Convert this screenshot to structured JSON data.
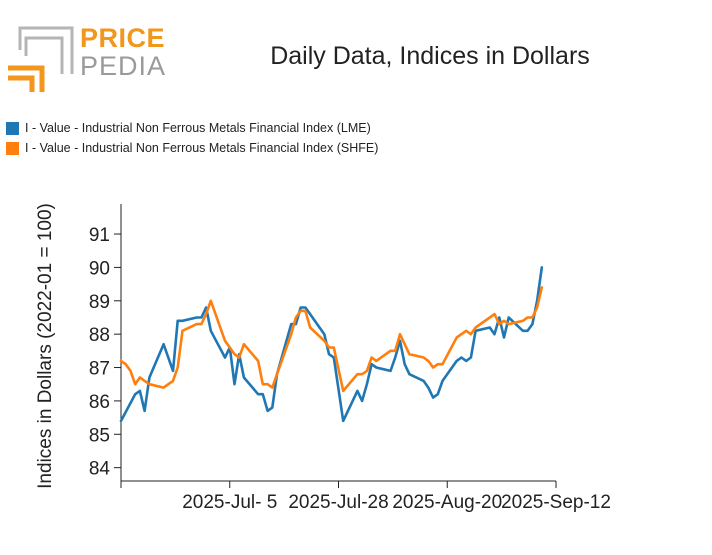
{
  "logo": {
    "word1": "PRICE",
    "word2": "PEDIA"
  },
  "colors": {
    "lme": "#1f77b4",
    "shfe": "#ff7f0e",
    "logo_orange": "#f2961c",
    "logo_gray": "#9a9a9a"
  },
  "chart_data": {
    "type": "line",
    "title": "Daily Data, Indices in Dollars",
    "xlabel": "",
    "ylabel": "Indices in Dollars (2022-01 = 100)",
    "ylim": [
      83.6,
      91.9
    ],
    "yticks": [
      84,
      85,
      86,
      87,
      88,
      89,
      90,
      91
    ],
    "xticks": [
      {
        "label": "2025-Jul- 5",
        "t": 14
      },
      {
        "label": "2025-Jul-28",
        "t": 37
      },
      {
        "label": "2025-Aug-20",
        "t": 60
      },
      {
        "label": "2025-Sep-12",
        "t": 83
      }
    ],
    "xlim": [
      -9,
      83
    ],
    "grid": false,
    "legend_position": "top-left",
    "series": [
      {
        "name": "I - Value - Industrial Non Ferrous Metals Financial Index (LME)",
        "color": "#1f77b4",
        "points": [
          [
            -9,
            85.4
          ],
          [
            -6,
            86.2
          ],
          [
            -5,
            86.3
          ],
          [
            -4,
            85.7
          ],
          [
            -3,
            86.7
          ],
          [
            0,
            87.7
          ],
          [
            2,
            86.9
          ],
          [
            3,
            88.4
          ],
          [
            4,
            88.4
          ],
          [
            7,
            88.5
          ],
          [
            8,
            88.5
          ],
          [
            9,
            88.8
          ],
          [
            10,
            88.1
          ],
          [
            13,
            87.3
          ],
          [
            14,
            87.6
          ],
          [
            15,
            86.5
          ],
          [
            16,
            87.4
          ],
          [
            17,
            86.7
          ],
          [
            20,
            86.2
          ],
          [
            21,
            86.2
          ],
          [
            22,
            85.7
          ],
          [
            23,
            85.8
          ],
          [
            24,
            86.8
          ],
          [
            27,
            88.3
          ],
          [
            28,
            88.3
          ],
          [
            29,
            88.8
          ],
          [
            30,
            88.8
          ],
          [
            31,
            88.6
          ],
          [
            34,
            88.0
          ],
          [
            35,
            87.4
          ],
          [
            36,
            87.3
          ],
          [
            38,
            85.4
          ],
          [
            41,
            86.3
          ],
          [
            42,
            86.0
          ],
          [
            43,
            86.5
          ],
          [
            44,
            87.1
          ],
          [
            45,
            87.0
          ],
          [
            48,
            86.9
          ],
          [
            49,
            87.3
          ],
          [
            50,
            87.8
          ],
          [
            51,
            87.1
          ],
          [
            52,
            86.8
          ],
          [
            55,
            86.6
          ],
          [
            56,
            86.4
          ],
          [
            57,
            86.1
          ],
          [
            58,
            86.2
          ],
          [
            59,
            86.6
          ],
          [
            62,
            87.2
          ],
          [
            63,
            87.3
          ],
          [
            64,
            87.2
          ],
          [
            65,
            87.3
          ],
          [
            66,
            88.1
          ],
          [
            69,
            88.2
          ],
          [
            70,
            88.0
          ],
          [
            71,
            88.5
          ],
          [
            72,
            87.9
          ],
          [
            73,
            88.5
          ],
          [
            76,
            88.1
          ],
          [
            77,
            88.1
          ],
          [
            78,
            88.3
          ],
          [
            79,
            89.0
          ],
          [
            80,
            90.0
          ]
        ]
      },
      {
        "name": "I - Value - Industrial Non Ferrous Metals Financial Index (SHFE)",
        "color": "#ff7f0e",
        "points": [
          [
            -9,
            87.2
          ],
          [
            -8,
            87.1
          ],
          [
            -7,
            86.9
          ],
          [
            -6,
            86.5
          ],
          [
            -5,
            86.7
          ],
          [
            -4,
            86.6
          ],
          [
            -3,
            86.5
          ],
          [
            0,
            86.4
          ],
          [
            2,
            86.6
          ],
          [
            3,
            87.0
          ],
          [
            4,
            88.1
          ],
          [
            7,
            88.3
          ],
          [
            8,
            88.3
          ],
          [
            9,
            88.6
          ],
          [
            10,
            89.0
          ],
          [
            13,
            87.8
          ],
          [
            14,
            87.6
          ],
          [
            15,
            87.4
          ],
          [
            16,
            87.3
          ],
          [
            17,
            87.7
          ],
          [
            20,
            87.2
          ],
          [
            21,
            86.5
          ],
          [
            22,
            86.5
          ],
          [
            23,
            86.4
          ],
          [
            24,
            86.8
          ],
          [
            27,
            88.0
          ],
          [
            28,
            88.5
          ],
          [
            29,
            88.7
          ],
          [
            30,
            88.7
          ],
          [
            31,
            88.2
          ],
          [
            34,
            87.8
          ],
          [
            35,
            87.6
          ],
          [
            36,
            87.6
          ],
          [
            38,
            86.3
          ],
          [
            41,
            86.8
          ],
          [
            42,
            86.8
          ],
          [
            43,
            86.9
          ],
          [
            44,
            87.3
          ],
          [
            45,
            87.2
          ],
          [
            48,
            87.5
          ],
          [
            49,
            87.5
          ],
          [
            50,
            88.0
          ],
          [
            51,
            87.7
          ],
          [
            52,
            87.4
          ],
          [
            55,
            87.3
          ],
          [
            56,
            87.2
          ],
          [
            57,
            87.0
          ],
          [
            58,
            87.1
          ],
          [
            59,
            87.1
          ],
          [
            62,
            87.9
          ],
          [
            63,
            88.0
          ],
          [
            64,
            88.1
          ],
          [
            65,
            88.0
          ],
          [
            66,
            88.2
          ],
          [
            69,
            88.5
          ],
          [
            70,
            88.6
          ],
          [
            71,
            88.3
          ],
          [
            72,
            88.4
          ],
          [
            73,
            88.3
          ],
          [
            76,
            88.4
          ],
          [
            77,
            88.5
          ],
          [
            78,
            88.5
          ],
          [
            79,
            88.8
          ],
          [
            80,
            89.4
          ]
        ]
      }
    ]
  }
}
